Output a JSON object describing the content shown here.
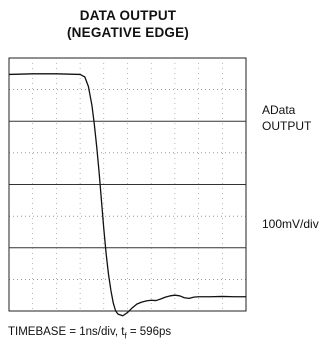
{
  "chart_data": {
    "type": "line",
    "title_line1": "DATA OUTPUT",
    "title_line2": "(NEGATIVE EDGE)",
    "signal_label_line1": "AData",
    "signal_label_line2": "OUTPUT",
    "vertical_scale": "100mV/div",
    "timebase_prefix": "TIMEBASE = 1ns/div, t",
    "fall_time_sub": "f",
    "fall_time_suffix": " = 596ps",
    "divisions": {
      "x": 10,
      "y": 8
    },
    "xlim": [
      0,
      10
    ],
    "ylim": [
      -4,
      4
    ],
    "grid": true,
    "series": [
      {
        "color": "#111111",
        "x": [
          0.0,
          1.0,
          2.0,
          3.0,
          3.2,
          3.35,
          3.5,
          3.6,
          3.7,
          3.8,
          3.9,
          4.0,
          4.1,
          4.2,
          4.3,
          4.4,
          4.5,
          4.6,
          4.8,
          5.0,
          5.2,
          5.4,
          5.6,
          5.8,
          6.0,
          6.2,
          6.4,
          6.6,
          6.8,
          7.0,
          7.2,
          7.4,
          7.6,
          7.8,
          8.0,
          8.5,
          9.0,
          9.5,
          10.0
        ],
        "y": [
          3.48,
          3.5,
          3.5,
          3.48,
          3.4,
          3.1,
          2.5,
          1.9,
          1.2,
          0.4,
          -0.5,
          -1.4,
          -2.2,
          -2.85,
          -3.35,
          -3.75,
          -4.0,
          -4.1,
          -4.15,
          -4.05,
          -3.9,
          -3.78,
          -3.72,
          -3.68,
          -3.66,
          -3.67,
          -3.62,
          -3.56,
          -3.52,
          -3.5,
          -3.52,
          -3.58,
          -3.6,
          -3.56,
          -3.55,
          -3.55,
          -3.54,
          -3.55,
          -3.55
        ]
      }
    ]
  }
}
